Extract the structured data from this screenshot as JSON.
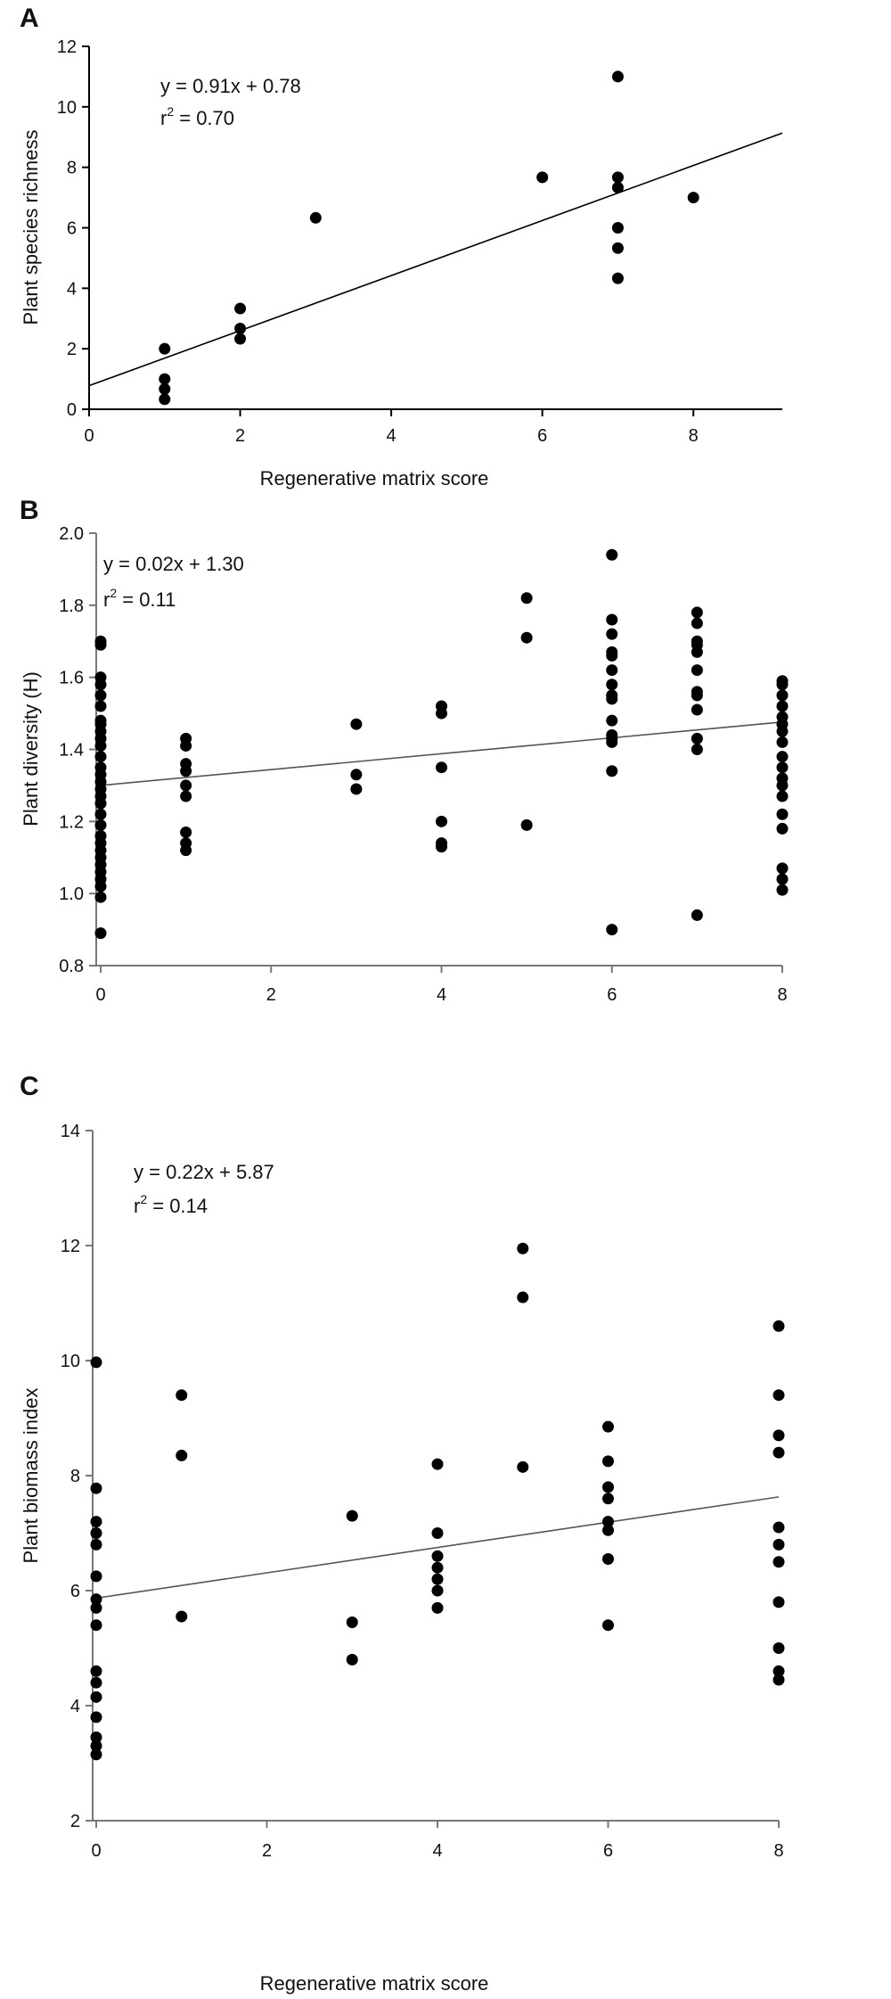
{
  "chart_data": [
    {
      "panel": "A",
      "type": "scatter",
      "xlabel": "Regenerative matrix score",
      "ylabel": "Plant species richness",
      "xlim": [
        0,
        9
      ],
      "ylim": [
        0,
        12
      ],
      "xticks": [
        0,
        2,
        4,
        6,
        8
      ],
      "yticks": [
        0,
        2,
        4,
        6,
        8,
        10,
        12
      ],
      "equation": "y = 0.91x + 0.78",
      "r2_label": "r",
      "r2_sup": "2",
      "r2_value": " = 0.70",
      "trend": {
        "slope": 0.91,
        "intercept": 0.78
      },
      "points": [
        [
          1,
          2
        ],
        [
          1,
          1
        ],
        [
          1,
          0.67
        ],
        [
          1,
          0.33
        ],
        [
          2,
          3.33
        ],
        [
          2,
          2.67
        ],
        [
          2,
          2.33
        ],
        [
          3,
          6.33
        ],
        [
          6,
          7.67
        ],
        [
          7,
          11
        ],
        [
          7,
          7.67
        ],
        [
          7,
          7.33
        ],
        [
          7,
          6
        ],
        [
          7,
          5.33
        ],
        [
          7,
          4.33
        ],
        [
          8,
          7
        ]
      ]
    },
    {
      "panel": "B",
      "type": "scatter",
      "xlabel": "",
      "ylabel": "Plant diversity (H)",
      "xlim": [
        0,
        8
      ],
      "ylim": [
        0.8,
        2.0
      ],
      "xticks": [
        0,
        2,
        4,
        6,
        8
      ],
      "yticks": [
        "0.8",
        "1.0",
        "1.2",
        "1.4",
        "1.6",
        "1.8",
        "2.0"
      ],
      "equation": "y = 0.02x + 1.30",
      "r2_label": "r",
      "r2_sup": "2",
      "r2_value": " = 0.11",
      "trend": {
        "slope": 0.022,
        "intercept": 1.3
      },
      "points": [
        [
          0,
          1.7
        ],
        [
          0,
          1.69
        ],
        [
          0,
          1.6
        ],
        [
          0,
          1.58
        ],
        [
          0,
          1.55
        ],
        [
          0,
          1.52
        ],
        [
          0,
          1.48
        ],
        [
          0,
          1.47
        ],
        [
          0,
          1.45
        ],
        [
          0,
          1.43
        ],
        [
          0,
          1.41
        ],
        [
          0,
          1.38
        ],
        [
          0,
          1.35
        ],
        [
          0,
          1.33
        ],
        [
          0,
          1.31
        ],
        [
          0,
          1.29
        ],
        [
          0,
          1.27
        ],
        [
          0,
          1.25
        ],
        [
          0,
          1.22
        ],
        [
          0,
          1.19
        ],
        [
          0,
          1.16
        ],
        [
          0,
          1.14
        ],
        [
          0,
          1.12
        ],
        [
          0,
          1.1
        ],
        [
          0,
          1.08
        ],
        [
          0,
          1.06
        ],
        [
          0,
          1.04
        ],
        [
          0,
          1.02
        ],
        [
          0,
          0.99
        ],
        [
          0,
          0.89
        ],
        [
          1,
          1.43
        ],
        [
          1,
          1.41
        ],
        [
          1,
          1.36
        ],
        [
          1,
          1.34
        ],
        [
          1,
          1.3
        ],
        [
          1,
          1.27
        ],
        [
          1,
          1.17
        ],
        [
          1,
          1.14
        ],
        [
          1,
          1.12
        ],
        [
          3,
          1.47
        ],
        [
          3,
          1.33
        ],
        [
          3,
          1.29
        ],
        [
          4,
          1.52
        ],
        [
          4,
          1.5
        ],
        [
          4,
          1.35
        ],
        [
          4,
          1.2
        ],
        [
          4,
          1.14
        ],
        [
          4,
          1.13
        ],
        [
          5,
          1.82
        ],
        [
          5,
          1.71
        ],
        [
          5,
          1.19
        ],
        [
          6,
          1.94
        ],
        [
          6,
          1.76
        ],
        [
          6,
          1.72
        ],
        [
          6,
          1.67
        ],
        [
          6,
          1.66
        ],
        [
          6,
          1.62
        ],
        [
          6,
          1.58
        ],
        [
          6,
          1.55
        ],
        [
          6,
          1.54
        ],
        [
          6,
          1.48
        ],
        [
          6,
          1.44
        ],
        [
          6,
          1.43
        ],
        [
          6,
          1.42
        ],
        [
          6,
          1.34
        ],
        [
          6,
          0.9
        ],
        [
          7,
          1.78
        ],
        [
          7,
          1.75
        ],
        [
          7,
          1.7
        ],
        [
          7,
          1.69
        ],
        [
          7,
          1.67
        ],
        [
          7,
          1.62
        ],
        [
          7,
          1.56
        ],
        [
          7,
          1.55
        ],
        [
          7,
          1.51
        ],
        [
          7,
          1.43
        ],
        [
          7,
          1.4
        ],
        [
          7,
          0.94
        ],
        [
          8,
          1.59
        ],
        [
          8,
          1.58
        ],
        [
          8,
          1.55
        ],
        [
          8,
          1.52
        ],
        [
          8,
          1.49
        ],
        [
          8,
          1.47
        ],
        [
          8,
          1.45
        ],
        [
          8,
          1.42
        ],
        [
          8,
          1.38
        ],
        [
          8,
          1.35
        ],
        [
          8,
          1.32
        ],
        [
          8,
          1.3
        ],
        [
          8,
          1.27
        ],
        [
          8,
          1.22
        ],
        [
          8,
          1.18
        ],
        [
          8,
          1.07
        ],
        [
          8,
          1.04
        ],
        [
          8,
          1.01
        ]
      ]
    },
    {
      "panel": "C",
      "type": "scatter",
      "xlabel": "Regenerative matrix score",
      "ylabel": "Plant biomass index",
      "xlim": [
        0,
        8
      ],
      "ylim": [
        2,
        14
      ],
      "xticks": [
        0,
        2,
        4,
        6,
        8
      ],
      "yticks": [
        2,
        4,
        6,
        8,
        10,
        12,
        14
      ],
      "equation": "y = 0.22x + 5.87",
      "r2_label": "r",
      "r2_sup": "2",
      "r2_value": " = 0.14",
      "trend": {
        "slope": 0.22,
        "intercept": 5.87
      },
      "points": [
        [
          0,
          9.97
        ],
        [
          0,
          7.78
        ],
        [
          0,
          7.2
        ],
        [
          0,
          7.0
        ],
        [
          0,
          6.8
        ],
        [
          0,
          6.25
        ],
        [
          0,
          5.85
        ],
        [
          0,
          5.7
        ],
        [
          0,
          5.4
        ],
        [
          0,
          4.6
        ],
        [
          0,
          4.4
        ],
        [
          0,
          4.15
        ],
        [
          0,
          3.8
        ],
        [
          0,
          3.45
        ],
        [
          0,
          3.3
        ],
        [
          0,
          3.15
        ],
        [
          1,
          9.4
        ],
        [
          1,
          8.35
        ],
        [
          1,
          5.55
        ],
        [
          3,
          7.3
        ],
        [
          3,
          5.45
        ],
        [
          3,
          4.8
        ],
        [
          4,
          8.2
        ],
        [
          4,
          7.0
        ],
        [
          4,
          6.6
        ],
        [
          4,
          6.4
        ],
        [
          4,
          6.2
        ],
        [
          4,
          6.0
        ],
        [
          4,
          5.7
        ],
        [
          5,
          11.95
        ],
        [
          5,
          11.1
        ],
        [
          5,
          8.15
        ],
        [
          6,
          8.85
        ],
        [
          6,
          8.25
        ],
        [
          6,
          7.8
        ],
        [
          6,
          7.6
        ],
        [
          6,
          7.2
        ],
        [
          6,
          7.05
        ],
        [
          6,
          6.55
        ],
        [
          6,
          5.4
        ],
        [
          8,
          10.6
        ],
        [
          8,
          9.4
        ],
        [
          8,
          8.7
        ],
        [
          8,
          8.4
        ],
        [
          8,
          7.1
        ],
        [
          8,
          6.8
        ],
        [
          8,
          6.5
        ],
        [
          8,
          5.8
        ],
        [
          8,
          5.0
        ],
        [
          8,
          4.6
        ],
        [
          8,
          4.45
        ]
      ]
    }
  ]
}
